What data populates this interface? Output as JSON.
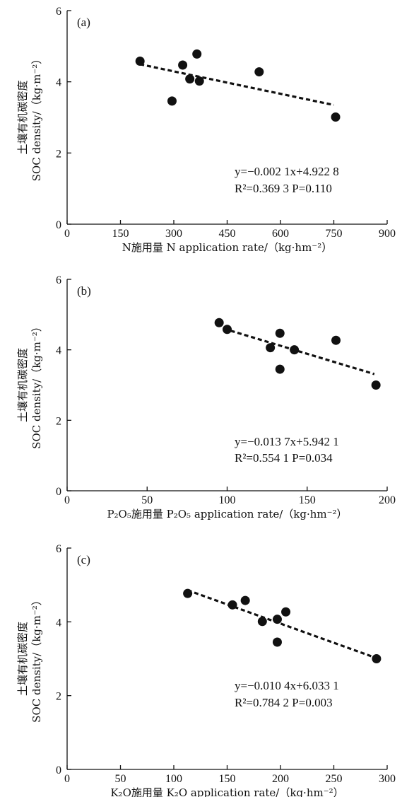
{
  "chart_data": [
    {
      "type": "scatter",
      "panel_label": "(a)",
      "xlabel": "N施用量 N application rate/（kg·hm⁻²）",
      "ylabel_line1": "土壤有机碳密度",
      "ylabel_line2": "SOC density/（kg·m⁻²）",
      "xlim": [
        0,
        900
      ],
      "ylim": [
        0,
        6
      ],
      "x_ticks": [
        0,
        150,
        300,
        450,
        600,
        750,
        900
      ],
      "y_ticks": [
        0,
        2,
        4,
        6
      ],
      "x": [
        205,
        295,
        325,
        345,
        365,
        372,
        540,
        755
      ],
      "y": [
        4.58,
        3.46,
        4.47,
        4.08,
        4.78,
        4.02,
        4.28,
        3.01
      ],
      "fit": {
        "slope": -0.0021,
        "intercept": 4.9228,
        "x_range": [
          205,
          750
        ]
      },
      "equation": "y=−0.002 1x+4.922 8",
      "stats": "R²=0.369 3  P=0.110"
    },
    {
      "type": "scatter",
      "panel_label": "(b)",
      "xlabel": "P₂O₅施用量 P₂O₅ application rate/（kg·hm⁻²）",
      "ylabel_line1": "土壤有机碳密度",
      "ylabel_line2": "SOC density/（kg·m⁻²）",
      "xlim": [
        0,
        200
      ],
      "ylim": [
        0,
        6
      ],
      "x_ticks": [
        0,
        50,
        100,
        150,
        200
      ],
      "y_ticks": [
        0,
        2,
        4,
        6
      ],
      "x": [
        95,
        100,
        127,
        133,
        133,
        142,
        168,
        193
      ],
      "y": [
        4.77,
        4.58,
        4.06,
        4.47,
        3.45,
        4.0,
        4.27,
        3.0
      ],
      "fit": {
        "slope": -0.0137,
        "intercept": 5.9421,
        "x_range": [
          98,
          192
        ]
      },
      "equation": "y=−0.013 7x+5.942 1",
      "stats": "R²=0.554 1  P=0.034"
    },
    {
      "type": "scatter",
      "panel_label": "(c)",
      "xlabel": "K₂O施用量 K₂O application rate/（kg·hm⁻²）",
      "ylabel_line1": "土壤有机碳密度",
      "ylabel_line2": "SOC density/（kg·m⁻²）",
      "xlim": [
        0,
        300
      ],
      "ylim": [
        0,
        6
      ],
      "x_ticks": [
        0,
        50,
        100,
        150,
        200,
        250,
        300
      ],
      "y_ticks": [
        0,
        2,
        4,
        6
      ],
      "x": [
        113,
        155,
        167,
        183,
        197,
        197,
        205,
        290
      ],
      "y": [
        4.77,
        4.46,
        4.58,
        4.01,
        4.07,
        3.45,
        4.27,
        3.0
      ],
      "fit": {
        "slope": -0.0104,
        "intercept": 6.0331,
        "x_range": [
          113,
          290
        ]
      },
      "equation": "y=−0.010 4x+6.033 1",
      "stats": "R²=0.784 2  P=0.003"
    }
  ]
}
